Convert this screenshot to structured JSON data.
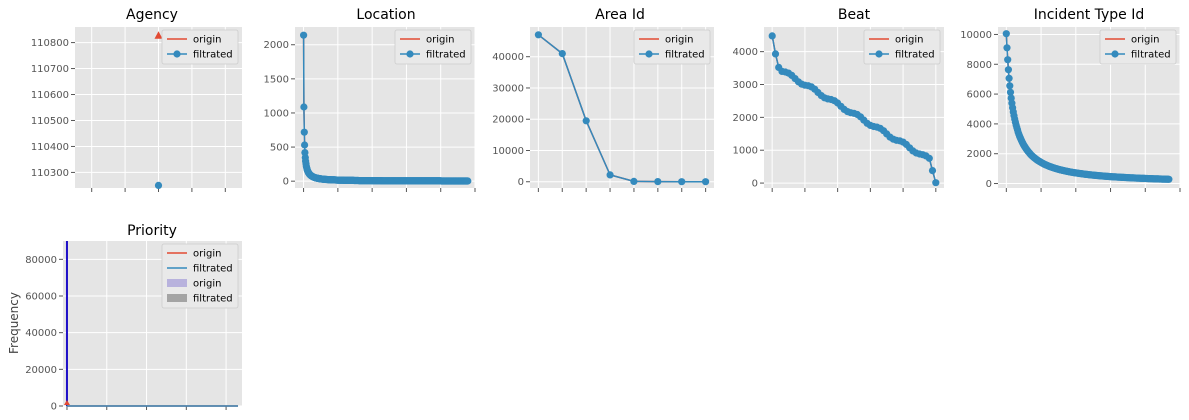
{
  "colors": {
    "origin": "#E24A33",
    "filtrated": "#348ABD",
    "bg": "#E5E5E5",
    "grid": "#ffffff",
    "hist_origin": "#988ED5",
    "hist_filtrated": "#777777",
    "vline": "#1f10c8"
  },
  "chart_data": [
    {
      "type": "line",
      "title": "Agency",
      "grid": true,
      "legend_placement": "top-right",
      "legend": [
        "origin",
        "filtrated"
      ],
      "ylim": [
        110240,
        110860
      ],
      "yticks": [
        110300,
        110400,
        110500,
        110600,
        110700,
        110800
      ],
      "x_range": [
        -0.5,
        0.5
      ],
      "xticks": [
        -0.4,
        -0.2,
        0.0,
        0.2,
        0.4
      ],
      "series": [
        {
          "name": "origin",
          "marker": "triangle",
          "x": [
            0
          ],
          "y": [
            110828
          ]
        },
        {
          "name": "filtrated",
          "marker": "circle",
          "x": [
            0
          ],
          "y": [
            110250
          ]
        }
      ]
    },
    {
      "type": "line",
      "title": "Location",
      "grid": true,
      "legend_placement": "top-right",
      "legend": [
        "origin",
        "filtrated"
      ],
      "ylim": [
        -100,
        2260
      ],
      "yticks": [
        0,
        500,
        1000,
        1500,
        2000
      ],
      "x_range": [
        -25,
        500
      ],
      "xticks": [
        0,
        100,
        200,
        300,
        400,
        500
      ],
      "series": [
        {
          "name": "origin",
          "curve": "rankdecay",
          "n": 480,
          "y0": 2140,
          "k": 0.85,
          "p": 1.1
        },
        {
          "name": "filtrated",
          "curve": "rankdecay",
          "n": 480,
          "y0": 2140,
          "k": 0.85,
          "p": 1.1
        }
      ]
    },
    {
      "type": "line",
      "title": "Area Id",
      "grid": true,
      "legend_placement": "top-right",
      "legend": [
        "origin",
        "filtrated"
      ],
      "ylim": [
        -2000,
        49500
      ],
      "yticks": [
        0,
        10000,
        20000,
        30000,
        40000
      ],
      "x_range": [
        -0.35,
        7.35
      ],
      "xticks": [
        0,
        1,
        2,
        3,
        4,
        5,
        6,
        7
      ],
      "series": [
        {
          "name": "origin",
          "x": [
            0,
            1,
            2,
            3,
            4,
            5,
            6,
            7
          ],
          "y": [
            47000,
            41000,
            19500,
            2200,
            100,
            50,
            30,
            20
          ]
        },
        {
          "name": "filtrated",
          "x": [
            0,
            1,
            2,
            3,
            4,
            5,
            6,
            7
          ],
          "y": [
            47000,
            41000,
            19500,
            2200,
            100,
            50,
            30,
            20
          ]
        }
      ]
    },
    {
      "type": "line",
      "title": "Beat",
      "grid": true,
      "legend_placement": "top-right",
      "legend": [
        "origin",
        "filtrated"
      ],
      "ylim": [
        -150,
        4750
      ],
      "yticks": [
        0,
        1000,
        2000,
        3000,
        4000
      ],
      "x_range": [
        -2.5,
        52.5
      ],
      "xticks": [
        0,
        10,
        20,
        30,
        40,
        50
      ],
      "series": [
        {
          "name": "origin",
          "curve": "beat"
        },
        {
          "name": "filtrated",
          "curve": "beat"
        }
      ]
    },
    {
      "type": "line",
      "title": "Incident Type Id",
      "grid": true,
      "legend_placement": "top-right",
      "legend": [
        "origin",
        "filtrated"
      ],
      "ylim": [
        -300,
        10500
      ],
      "yticks": [
        0,
        2000,
        4000,
        6000,
        8000,
        10000
      ],
      "x_range": [
        -12,
        250
      ],
      "xticks": [
        0,
        50,
        100,
        150,
        200,
        250
      ],
      "series": [
        {
          "name": "origin",
          "curve": "rankdecay",
          "n": 235,
          "y0": 10050,
          "k": 0.09,
          "p": 1.15
        },
        {
          "name": "filtrated",
          "curve": "rankdecay",
          "n": 235,
          "y0": 10050,
          "k": 0.09,
          "p": 1.15
        }
      ]
    },
    {
      "type": "bar",
      "title": "Priority",
      "grid": true,
      "legend_placement": "top-right",
      "legend": [
        "origin",
        "filtrated",
        "origin",
        "filtrated"
      ],
      "ylabel": "Frequency",
      "ylim": [
        0,
        90000
      ],
      "yticks": [
        0,
        20000,
        40000,
        60000,
        80000
      ],
      "x_range": [
        -0.1,
        4.4
      ],
      "xticks": [
        0,
        1,
        2,
        3,
        4
      ],
      "vline_x": 0,
      "series": [
        {
          "name": "origin",
          "x": [
            0,
            4.3
          ],
          "y": [
            0,
            0
          ]
        },
        {
          "name": "filtrated",
          "x": [
            0,
            4.3
          ],
          "y": [
            0,
            0
          ]
        }
      ]
    }
  ]
}
